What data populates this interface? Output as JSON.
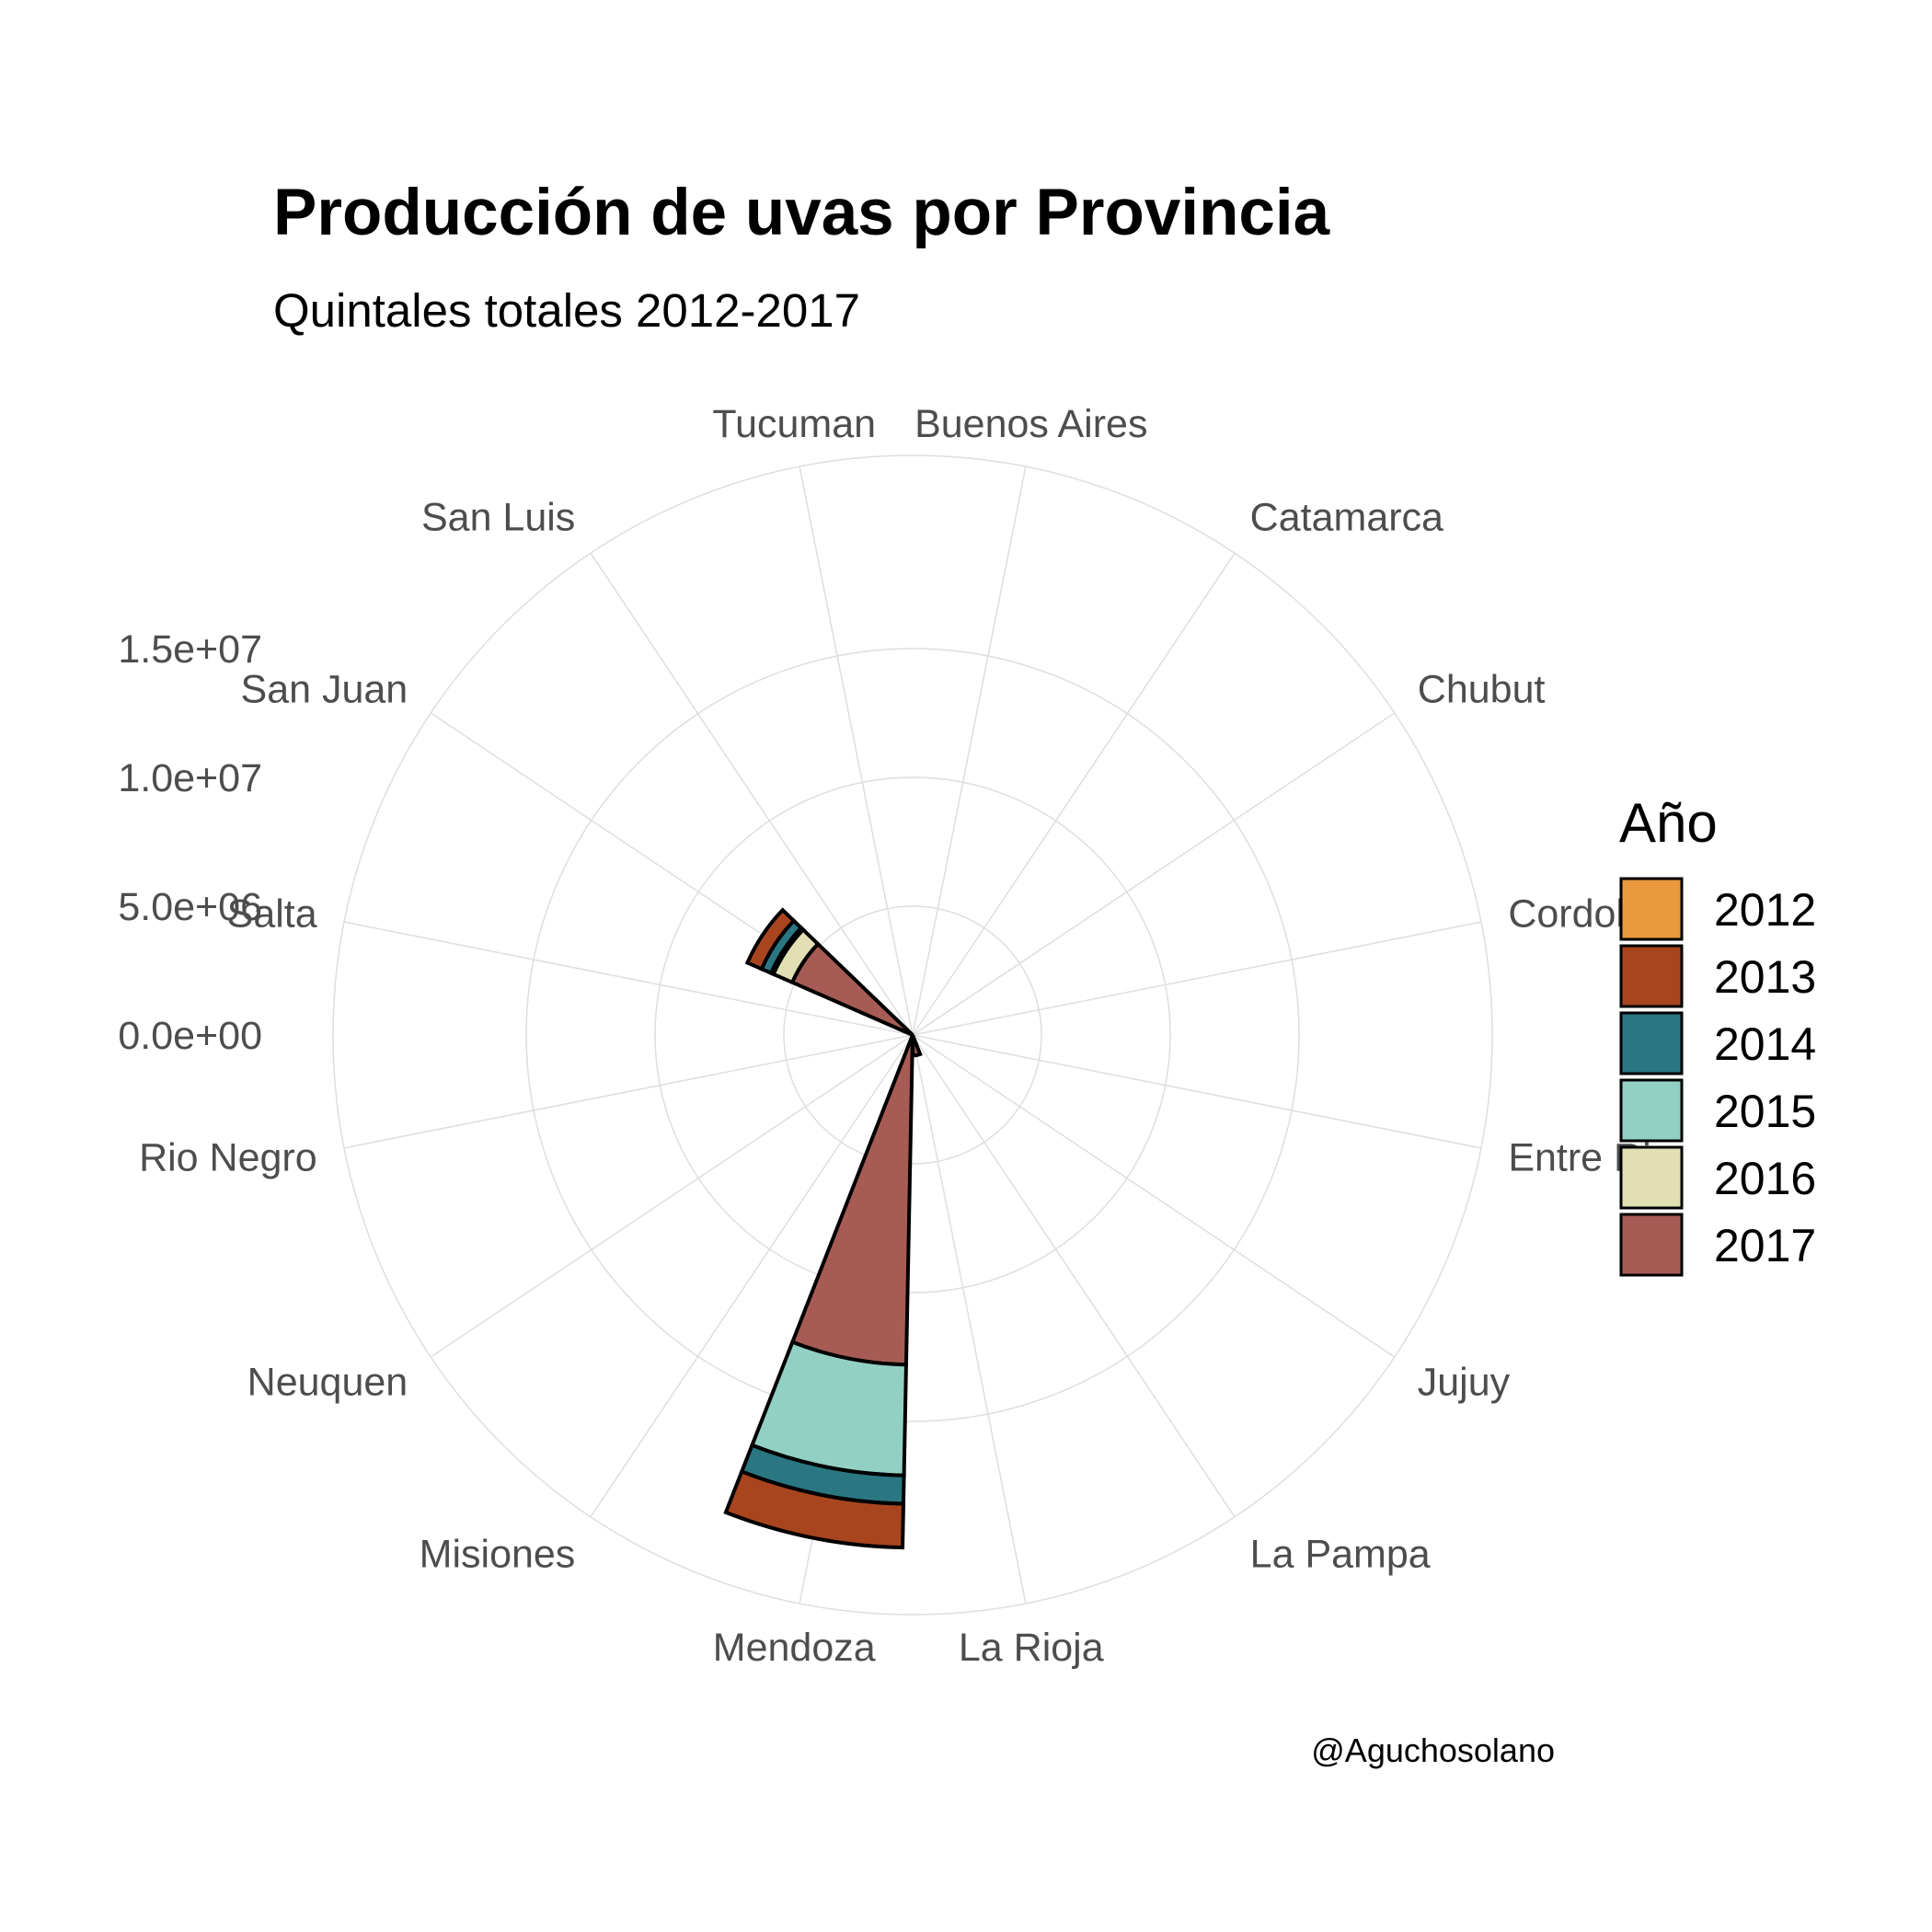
{
  "chart_data": {
    "type": "bar",
    "coordinate_system": "polar",
    "title": "Producción de uvas por Provincia",
    "subtitle": "Quintales totales 2012-2017",
    "caption": "@Aguchosolano",
    "legend_title": "Año",
    "legend_position": "right",
    "categories": [
      "Buenos Aires",
      "Catamarca",
      "Chubut",
      "Cordoba",
      "Entre Rio",
      "Jujuy",
      "La Pampa",
      "La Rioja",
      "Mendoza",
      "Misiones",
      "Neuquen",
      "Rio Negro",
      "Salta",
      "San Juan",
      "San Luis",
      "Tucuman"
    ],
    "radial_ticks": [
      "0.0e+00",
      "5.0e+06",
      "1.0e+07",
      "1.5e+07"
    ],
    "radial_tick_values": [
      0,
      5000000,
      10000000,
      15000000
    ],
    "ylim": [
      0,
      22500000
    ],
    "grid": true,
    "series": [
      {
        "name": "2017",
        "color": "#a65c55",
        "values": [
          0,
          0,
          0,
          0,
          0,
          0,
          0,
          800000,
          12800000,
          0,
          0,
          0,
          0,
          5100000,
          0,
          0
        ]
      },
      {
        "name": "2016",
        "color": "#e2dfb4",
        "values": [
          0,
          0,
          0,
          0,
          0,
          0,
          0,
          0,
          0,
          0,
          0,
          0,
          0,
          800000,
          0,
          0
        ]
      },
      {
        "name": "2015",
        "color": "#92d0c4",
        "values": [
          0,
          0,
          0,
          0,
          0,
          0,
          0,
          0,
          4300000,
          0,
          0,
          0,
          0,
          100000,
          0,
          0
        ]
      },
      {
        "name": "2014",
        "color": "#2a7782",
        "values": [
          0,
          0,
          0,
          0,
          0,
          0,
          0,
          0,
          1100000,
          0,
          0,
          0,
          0,
          400000,
          0,
          0
        ]
      },
      {
        "name": "2013",
        "color": "#a8451f",
        "values": [
          0,
          0,
          0,
          0,
          0,
          0,
          0,
          0,
          1700000,
          0,
          0,
          0,
          0,
          600000,
          0,
          0
        ]
      },
      {
        "name": "2012",
        "color": "#e99a3c",
        "values": [
          0,
          0,
          0,
          0,
          0,
          0,
          0,
          0,
          0,
          0,
          0,
          0,
          0,
          0,
          0,
          0
        ]
      }
    ],
    "legend_order": [
      "2012",
      "2013",
      "2014",
      "2015",
      "2016",
      "2017"
    ]
  }
}
